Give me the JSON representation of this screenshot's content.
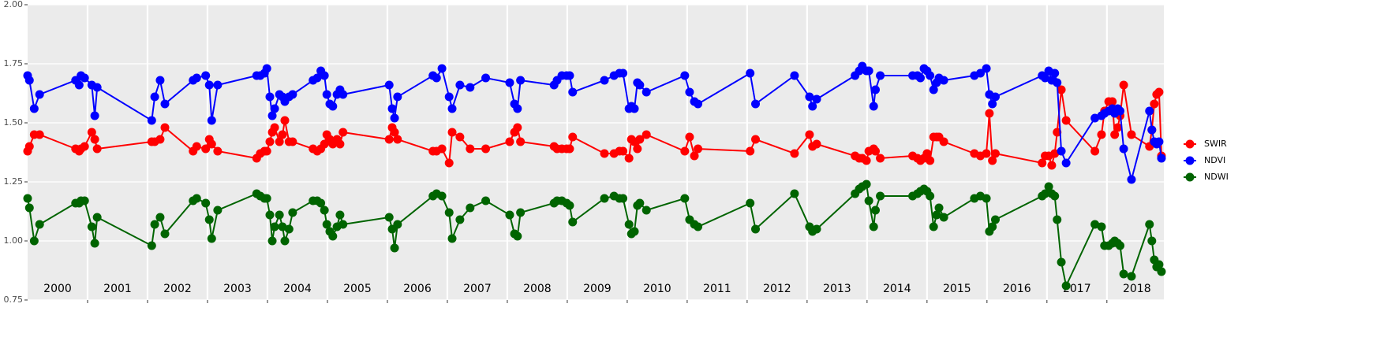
{
  "chart_data": {
    "type": "line",
    "x": [
      2000.0,
      2000.03,
      2000.11,
      2000.2,
      2000.8,
      2000.86,
      2000.89,
      2000.95,
      2001.07,
      2001.12,
      2001.16,
      2002.07,
      2002.12,
      2002.21,
      2002.29,
      2002.76,
      2002.82,
      2002.97,
      2003.03,
      2003.07,
      2003.17,
      2003.82,
      2003.88,
      2003.95,
      2003.99,
      2004.04,
      2004.08,
      2004.12,
      2004.2,
      2004.25,
      2004.29,
      2004.36,
      2004.42,
      2004.76,
      2004.83,
      2004.89,
      2004.95,
      2004.99,
      2005.04,
      2005.09,
      2005.16,
      2005.21,
      2005.26,
      2006.03,
      2006.08,
      2006.12,
      2006.17,
      2006.76,
      2006.82,
      2006.91,
      2007.03,
      2007.08,
      2007.21,
      2007.38,
      2007.64,
      2008.04,
      2008.12,
      2008.17,
      2008.22,
      2008.78,
      2008.83,
      2008.91,
      2008.99,
      2009.04,
      2009.09,
      2009.62,
      2009.78,
      2009.87,
      2009.93,
      2010.03,
      2010.07,
      2010.12,
      2010.17,
      2010.21,
      2010.32,
      2010.96,
      2011.04,
      2011.12,
      2011.18,
      2012.05,
      2012.14,
      2012.79,
      2013.04,
      2013.09,
      2013.16,
      2013.8,
      2013.87,
      2013.92,
      2013.99,
      2014.03,
      2014.11,
      2014.14,
      2014.22,
      2014.76,
      2014.84,
      2014.89,
      2014.95,
      2015.0,
      2015.05,
      2015.11,
      2015.16,
      2015.2,
      2015.28,
      2015.79,
      2015.89,
      2015.99,
      2016.04,
      2016.09,
      2016.14,
      2016.92,
      2016.97,
      2017.03,
      2017.08,
      2017.13,
      2017.17,
      2017.24,
      2017.32,
      2017.8,
      2017.91,
      2017.96,
      2018.03,
      2018.09,
      2018.13,
      2018.18,
      2018.22,
      2018.28,
      2018.41,
      2018.71,
      2018.75,
      2018.79,
      2018.83,
      2018.87,
      2018.91
    ],
    "series": [
      {
        "name": "SWIR",
        "color": "#ff0000",
        "values": [
          1.38,
          1.4,
          1.45,
          1.45,
          1.39,
          1.38,
          1.39,
          1.4,
          1.46,
          1.43,
          1.39,
          1.42,
          1.42,
          1.43,
          1.48,
          1.38,
          1.4,
          1.39,
          1.43,
          1.41,
          1.38,
          1.35,
          1.37,
          1.38,
          1.38,
          1.42,
          1.46,
          1.48,
          1.42,
          1.45,
          1.51,
          1.42,
          1.42,
          1.39,
          1.38,
          1.39,
          1.41,
          1.45,
          1.43,
          1.41,
          1.43,
          1.41,
          1.46,
          1.43,
          1.48,
          1.46,
          1.43,
          1.38,
          1.38,
          1.39,
          1.33,
          1.46,
          1.44,
          1.39,
          1.39,
          1.42,
          1.46,
          1.48,
          1.42,
          1.4,
          1.39,
          1.39,
          1.39,
          1.39,
          1.44,
          1.37,
          1.37,
          1.38,
          1.38,
          1.35,
          1.43,
          1.42,
          1.39,
          1.43,
          1.45,
          1.38,
          1.44,
          1.36,
          1.39,
          1.38,
          1.43,
          1.37,
          1.45,
          1.4,
          1.41,
          1.36,
          1.35,
          1.35,
          1.34,
          1.38,
          1.39,
          1.38,
          1.35,
          1.36,
          1.35,
          1.34,
          1.35,
          1.37,
          1.34,
          1.44,
          1.44,
          1.44,
          1.42,
          1.37,
          1.36,
          1.37,
          1.54,
          1.34,
          1.37,
          1.33,
          1.36,
          1.36,
          1.32,
          1.37,
          1.46,
          1.64,
          1.51,
          1.38,
          1.45,
          1.55,
          1.59,
          1.59,
          1.45,
          1.48,
          1.53,
          1.66,
          1.45,
          1.4,
          1.47,
          1.58,
          1.62,
          1.63,
          1.36
        ]
      },
      {
        "name": "NDVI",
        "color": "#0000ff",
        "values": [
          1.7,
          1.68,
          1.56,
          1.62,
          1.68,
          1.66,
          1.7,
          1.69,
          1.66,
          1.53,
          1.65,
          1.51,
          1.61,
          1.68,
          1.58,
          1.68,
          1.69,
          1.7,
          1.66,
          1.51,
          1.66,
          1.7,
          1.7,
          1.71,
          1.73,
          1.61,
          1.53,
          1.56,
          1.62,
          1.61,
          1.59,
          1.61,
          1.62,
          1.68,
          1.69,
          1.72,
          1.7,
          1.62,
          1.58,
          1.57,
          1.62,
          1.64,
          1.62,
          1.66,
          1.56,
          1.52,
          1.61,
          1.7,
          1.69,
          1.73,
          1.61,
          1.56,
          1.66,
          1.65,
          1.69,
          1.67,
          1.58,
          1.56,
          1.68,
          1.66,
          1.68,
          1.7,
          1.7,
          1.7,
          1.63,
          1.68,
          1.7,
          1.71,
          1.71,
          1.56,
          1.57,
          1.56,
          1.67,
          1.66,
          1.63,
          1.7,
          1.63,
          1.59,
          1.58,
          1.71,
          1.58,
          1.7,
          1.61,
          1.57,
          1.6,
          1.7,
          1.72,
          1.74,
          1.72,
          1.72,
          1.57,
          1.64,
          1.7,
          1.7,
          1.7,
          1.69,
          1.73,
          1.72,
          1.7,
          1.64,
          1.67,
          1.69,
          1.68,
          1.7,
          1.71,
          1.73,
          1.62,
          1.58,
          1.61,
          1.7,
          1.69,
          1.72,
          1.68,
          1.71,
          1.67,
          1.38,
          1.33,
          1.52,
          1.53,
          1.54,
          1.55,
          1.56,
          1.54,
          1.56,
          1.55,
          1.39,
          1.26,
          1.55,
          1.47,
          1.42,
          1.41,
          1.42,
          1.35
        ]
      },
      {
        "name": "NDWI",
        "color": "#006400",
        "values": [
          1.18,
          1.14,
          1.0,
          1.07,
          1.16,
          1.16,
          1.17,
          1.17,
          1.06,
          0.99,
          1.1,
          0.98,
          1.07,
          1.1,
          1.03,
          1.17,
          1.18,
          1.16,
          1.09,
          1.01,
          1.13,
          1.2,
          1.19,
          1.18,
          1.18,
          1.11,
          1.0,
          1.06,
          1.11,
          1.06,
          1.0,
          1.05,
          1.12,
          1.17,
          1.17,
          1.16,
          1.13,
          1.07,
          1.04,
          1.02,
          1.06,
          1.11,
          1.07,
          1.1,
          1.05,
          0.97,
          1.07,
          1.19,
          1.2,
          1.19,
          1.12,
          1.01,
          1.09,
          1.14,
          1.17,
          1.11,
          1.03,
          1.02,
          1.12,
          1.16,
          1.17,
          1.17,
          1.16,
          1.15,
          1.08,
          1.18,
          1.19,
          1.18,
          1.18,
          1.07,
          1.03,
          1.04,
          1.15,
          1.16,
          1.13,
          1.18,
          1.09,
          1.07,
          1.06,
          1.16,
          1.05,
          1.2,
          1.06,
          1.04,
          1.05,
          1.2,
          1.22,
          1.23,
          1.24,
          1.17,
          1.06,
          1.13,
          1.19,
          1.19,
          1.2,
          1.21,
          1.22,
          1.21,
          1.19,
          1.06,
          1.11,
          1.14,
          1.1,
          1.18,
          1.19,
          1.18,
          1.04,
          1.06,
          1.09,
          1.19,
          1.2,
          1.23,
          1.2,
          1.19,
          1.09,
          0.91,
          0.81,
          1.07,
          1.06,
          0.98,
          0.98,
          0.99,
          1.0,
          0.99,
          0.98,
          0.86,
          0.85,
          1.07,
          1.0,
          0.92,
          0.89,
          0.9,
          0.87
        ]
      }
    ],
    "xlim": [
      2000,
      2018.95
    ],
    "x_grid": [
      2001,
      2002,
      2003,
      2004,
      2005,
      2006,
      2007,
      2008,
      2009,
      2010,
      2011,
      2012,
      2013,
      2014,
      2015,
      2016,
      2017,
      2018
    ],
    "xticks": [
      {
        "value": 2000.5,
        "label": "2000"
      },
      {
        "value": 2001.5,
        "label": "2001"
      },
      {
        "value": 2002.5,
        "label": "2002"
      },
      {
        "value": 2003.5,
        "label": "2003"
      },
      {
        "value": 2004.5,
        "label": "2004"
      },
      {
        "value": 2005.5,
        "label": "2005"
      },
      {
        "value": 2006.5,
        "label": "2006"
      },
      {
        "value": 2007.5,
        "label": "2007"
      },
      {
        "value": 2008.5,
        "label": "2008"
      },
      {
        "value": 2009.5,
        "label": "2009"
      },
      {
        "value": 2010.5,
        "label": "2010"
      },
      {
        "value": 2011.5,
        "label": "2011"
      },
      {
        "value": 2012.5,
        "label": "2012"
      },
      {
        "value": 2013.5,
        "label": "2013"
      },
      {
        "value": 2014.5,
        "label": "2014"
      },
      {
        "value": 2015.5,
        "label": "2015"
      },
      {
        "value": 2016.5,
        "label": "2016"
      },
      {
        "value": 2017.5,
        "label": "2017"
      },
      {
        "value": 2018.5,
        "label": "2018"
      }
    ],
    "ylim": [
      0.75,
      2.0
    ],
    "yticks": [
      {
        "value": 0.75,
        "label": "0.75"
      },
      {
        "value": 1.0,
        "label": "1.00"
      },
      {
        "value": 1.25,
        "label": "1.25"
      },
      {
        "value": 1.5,
        "label": "1.50"
      },
      {
        "value": 1.75,
        "label": "1.75"
      },
      {
        "value": 2.0,
        "label": "2.00"
      }
    ],
    "grid": true,
    "legend": "right"
  }
}
